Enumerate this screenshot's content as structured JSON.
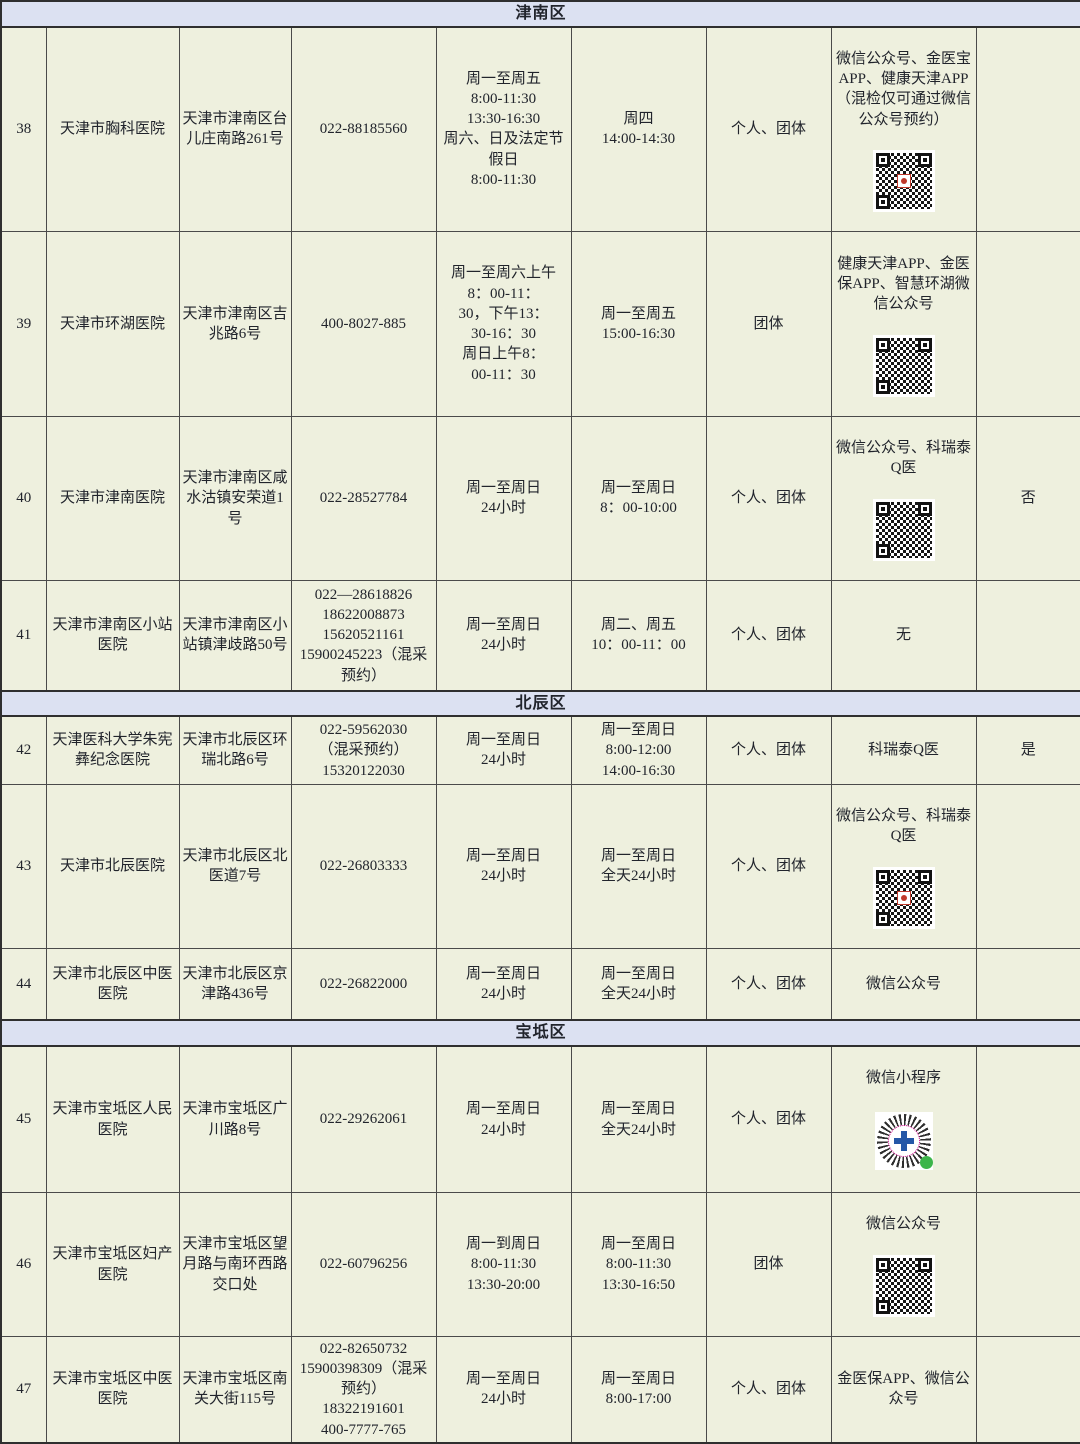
{
  "colors": {
    "cell_bg": "#eef0de",
    "district_header_bg": "#dce1f2",
    "border": "#4a4a4a",
    "text": "#21242c"
  },
  "sections": [
    {
      "district": "津南区",
      "rows": [
        {
          "no": "38",
          "name": "天津市胸科医院",
          "address": "天津市津南区台儿庄南路261号",
          "phone": "022-88185560",
          "hours": "周一至周五\n8:00-11:30\n13:30-16:30\n周六、日及法定节假日\n8:00-11:30",
          "time2": "周四\n14:00-14:30",
          "target": "个人、团体",
          "booking": "微信公众号、金医宝APP、健康天津APP（混检仅可通过微信公众号预约）",
          "qr": "qr-code",
          "flag": ""
        },
        {
          "no": "39",
          "name": "天津市环湖医院",
          "address": "天津市津南区吉兆路6号",
          "phone": "400-8027-885",
          "hours": "周一至周六上午\n8：00-11：\n30，下午13：\n30-16：30\n周日上午8：\n00-11：30",
          "time2": "周一至周五\n15:00-16:30",
          "target": "团体",
          "booking": "健康天津APP、金医保APP、智慧环湖微信公众号",
          "qr": "qr-code",
          "flag": ""
        },
        {
          "no": "40",
          "name": "天津市津南医院",
          "address": "天津市津南区咸水沽镇安荣道1号",
          "phone": "022-28527784",
          "hours": "周一至周日\n24小时",
          "time2": "周一至周日\n8：00-10:00",
          "target": "个人、团体",
          "booking": "微信公众号、科瑞泰Q医",
          "qr": "qr-code",
          "flag": "否"
        },
        {
          "no": "41",
          "name": "天津市津南区小站医院",
          "address": "天津市津南区小站镇津歧路50号",
          "phone": "022—28618826\n18622008873\n15620521161\n15900245223（混采预约）",
          "hours": "周一至周日\n24小时",
          "time2": "周二、周五\n10：00-11：00",
          "target": "个人、团体",
          "booking": "无",
          "qr": null,
          "flag": ""
        }
      ]
    },
    {
      "district": "北辰区",
      "rows": [
        {
          "no": "42",
          "name": "天津医科大学朱宪彝纪念医院",
          "address": "天津市北辰区环瑞北路6号",
          "phone": "022-59562030\n（混采预约）\n15320122030",
          "hours": "周一至周日\n24小时",
          "time2": "周一至周日\n8:00-12:00\n14:00-16:30",
          "target": "个人、团体",
          "booking": "科瑞泰Q医",
          "qr": null,
          "flag": "是"
        },
        {
          "no": "43",
          "name": "天津市北辰医院",
          "address": "天津市北辰区北医道7号",
          "phone": "022-26803333",
          "hours": "周一至周日\n24小时",
          "time2": "周一至周日\n全天24小时",
          "target": "个人、团体",
          "booking": "微信公众号、科瑞泰Q医",
          "qr": "qr-code",
          "flag": ""
        },
        {
          "no": "44",
          "name": "天津市北辰区中医医院",
          "address": "天津市北辰区京津路436号",
          "phone": "022-26822000",
          "hours": "周一至周日\n24小时",
          "time2": "周一至周日\n全天24小时",
          "target": "个人、团体",
          "booking": "微信公众号",
          "qr": null,
          "flag": ""
        }
      ]
    },
    {
      "district": "宝坻区",
      "rows": [
        {
          "no": "45",
          "name": "天津市宝坻区人民医院",
          "address": "天津市宝坻区广川路8号",
          "phone": "022-29262061",
          "hours": "周一至周日\n24小时",
          "time2": "周一至周日\n全天24小时",
          "target": "个人、团体",
          "booking": "微信小程序",
          "qr": "wechat-miniprogram-code",
          "flag": ""
        },
        {
          "no": "46",
          "name": "天津市宝坻区妇产医院",
          "address": "天津市宝坻区望月路与南环西路交口处",
          "phone": "022-60796256",
          "hours": "周一到周日\n8:00-11:30\n13:30-20:00",
          "time2": "周一至周日\n8:00-11:30\n13:30-16:50",
          "target": "团体",
          "booking": "微信公众号",
          "qr": "qr-code",
          "flag": ""
        },
        {
          "no": "47",
          "name": "天津市宝坻区中医医院",
          "address": "天津市宝坻区南关大街115号",
          "phone": "022-82650732\n15900398309（混采预约）\n18322191601\n400-7777-765",
          "hours": "周一至周日\n24小时",
          "time2": "周一至周日\n8:00-17:00",
          "target": "个人、团体",
          "booking": "金医保APP、微信公众号",
          "qr": null,
          "flag": ""
        }
      ]
    }
  ]
}
